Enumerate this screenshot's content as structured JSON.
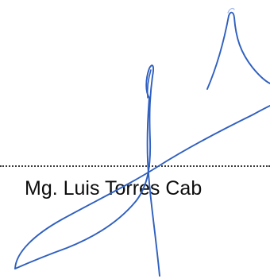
{
  "signature_block": {
    "signer_name": "Mg. Luis Torres Cab",
    "signature_ink_color": "#2f5fbf",
    "dotted_line_color": "#3a3a3a",
    "text_color": "#0d0d0d"
  }
}
